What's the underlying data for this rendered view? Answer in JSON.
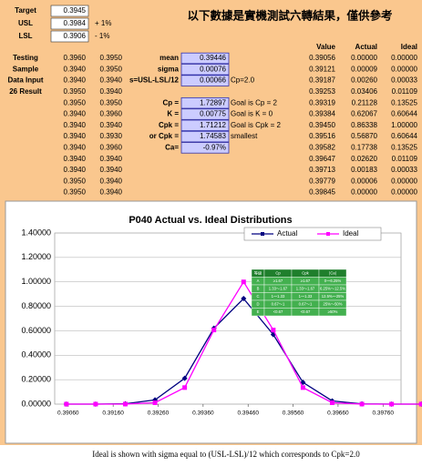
{
  "sheet": {
    "spec": [
      {
        "label": "Target",
        "value": "0.3945"
      },
      {
        "label": "USL",
        "value": "0.3984",
        "note": "+ 1%"
      },
      {
        "label": "LSL",
        "value": "0.3906",
        "note": "- 1%"
      }
    ],
    "notice": "以下數據是實機測試六轉結果，僅供參考",
    "row_labels": [
      "Testing",
      "Sample",
      "Data Input",
      "26 Result"
    ],
    "samples": [
      [
        "0.3960",
        "0.3950"
      ],
      [
        "0.3940",
        "0.3950"
      ],
      [
        "0.3940",
        "0.3940"
      ],
      [
        "0.3950",
        "0.3940"
      ],
      [
        "0.3950",
        "0.3950"
      ],
      [
        "0.3940",
        "0.3960"
      ],
      [
        "0.3940",
        "0.3940"
      ],
      [
        "0.3940",
        "0.3930"
      ],
      [
        "0.3940",
        "0.3960"
      ],
      [
        "0.3940",
        "0.3940"
      ],
      [
        "0.3940",
        "0.3940"
      ],
      [
        "0.3950",
        "0.3940"
      ],
      [
        "0.3950",
        "0.3940"
      ]
    ],
    "stats_top": [
      {
        "label": "mean",
        "value": "0.39446"
      },
      {
        "label": "sigma",
        "value": "0.00076"
      },
      {
        "label": "s=USL-LSL/12",
        "value": "0.00066",
        "note": "Cp=2.0"
      }
    ],
    "stats_bottom": [
      {
        "label": "Cp =",
        "value": "1.72897",
        "note": "Goal is Cp = 2"
      },
      {
        "label": "K =",
        "value": "0.00775",
        "note": "Goal is K = 0"
      },
      {
        "label": "Cpk =",
        "value": "1.71212",
        "note": "Goal is Cpk = 2"
      },
      {
        "label": "or Cpk =",
        "value": "1.74583",
        "note": "smallest"
      },
      {
        "label": "Ca=",
        "value": "-0.97%"
      }
    ],
    "table_header": [
      "Value",
      "Actual",
      "Ideal"
    ],
    "table_rows": [
      [
        "0.39056",
        "0.00000",
        "0.00000"
      ],
      [
        "0.39121",
        "0.00009",
        "0.00000"
      ],
      [
        "0.39187",
        "0.00260",
        "0.00033"
      ],
      [
        "0.39253",
        "0.03406",
        "0.01109"
      ],
      [
        "0.39319",
        "0.21128",
        "0.13525"
      ],
      [
        "0.39384",
        "0.62067",
        "0.60644"
      ],
      [
        "0.39450",
        "0.86338",
        "1.00000"
      ],
      [
        "0.39516",
        "0.56870",
        "0.60644"
      ],
      [
        "0.39582",
        "0.17738",
        "0.13525"
      ],
      [
        "0.39647",
        "0.02620",
        "0.01109"
      ],
      [
        "0.39713",
        "0.00183",
        "0.00033"
      ],
      [
        "0.39779",
        "0.00006",
        "0.00000"
      ],
      [
        "0.39845",
        "0.00000",
        "0.00000"
      ]
    ]
  },
  "chart_data": {
    "type": "line",
    "title": "P040 Actual vs. Ideal Distributions",
    "x": [
      0.39056,
      0.39121,
      0.39187,
      0.39253,
      0.39319,
      0.39384,
      0.3945,
      0.39516,
      0.39582,
      0.39647,
      0.39713,
      0.39779,
      0.39845
    ],
    "series": [
      {
        "name": "Actual",
        "color": "#000080",
        "marker": "diamond",
        "values": [
          0,
          9e-05,
          0.0026,
          0.03406,
          0.21128,
          0.62067,
          0.86338,
          0.5687,
          0.17738,
          0.0262,
          0.00183,
          6e-05,
          0
        ]
      },
      {
        "name": "Ideal",
        "color": "#ff00ff",
        "marker": "square",
        "values": [
          0,
          0,
          0.00033,
          0.01109,
          0.13525,
          0.60644,
          1,
          0.60644,
          0.13525,
          0.01109,
          0.00033,
          0,
          0
        ]
      }
    ],
    "xlim": [
      0.3903,
      0.398
    ],
    "xticks": [
      {
        "value": 0.3906,
        "label": "0.39060"
      },
      {
        "value": 0.3916,
        "label": "0.39160"
      },
      {
        "value": 0.3926,
        "label": "0.39260"
      },
      {
        "value": 0.3936,
        "label": "0.39360"
      },
      {
        "value": 0.3946,
        "label": "0.39460"
      },
      {
        "value": 0.3956,
        "label": "0.39560"
      },
      {
        "value": 0.3966,
        "label": "0.39660"
      },
      {
        "value": 0.3976,
        "label": "0.39760"
      }
    ],
    "ylim": [
      0,
      1.4
    ],
    "yticks": [
      {
        "value": 0,
        "label": "0.00000"
      },
      {
        "value": 0.2,
        "label": "0.20000"
      },
      {
        "value": 0.4,
        "label": "0.40000"
      },
      {
        "value": 0.6,
        "label": "0.60000"
      },
      {
        "value": 0.8,
        "label": "0.80000"
      },
      {
        "value": 1,
        "label": "1.00000"
      },
      {
        "value": 1.2,
        "label": "1.20000"
      },
      {
        "value": 1.4,
        "label": "1.40000"
      }
    ],
    "grid": true,
    "legend": "top-right",
    "grade_table": {
      "header": [
        "等級",
        "Cp",
        "Cpk",
        "|Ca|"
      ],
      "rows": [
        [
          "A",
          "≥1.67",
          "≥1.67",
          "0～6.25%"
        ],
        [
          "B",
          "1.33～1.67",
          "1.33～1.67",
          "6.25%～12.5%"
        ],
        [
          "C",
          "1～1.33",
          "1～1.33",
          "12.5%～25%"
        ],
        [
          "D",
          "0.67～1",
          "0.67～1",
          "25%～50%"
        ],
        [
          "E",
          "<0.67",
          "<0.67",
          "≥50%"
        ]
      ]
    }
  },
  "footer": "Ideal is shown with sigma equal to (USL-LSL)/12 which corresponds to Cpk=2.0"
}
